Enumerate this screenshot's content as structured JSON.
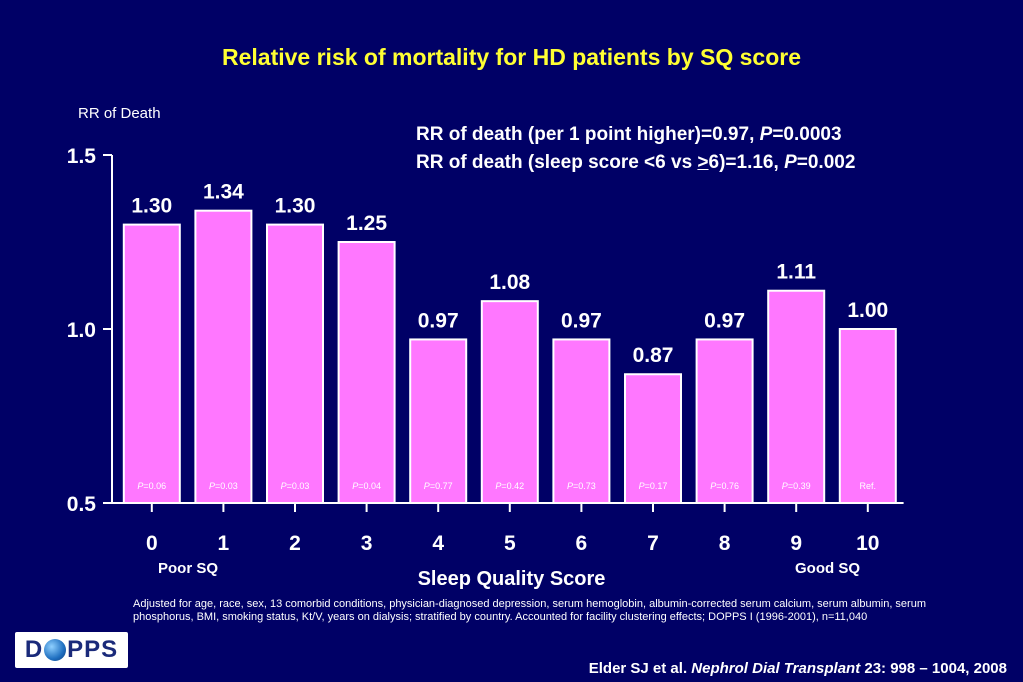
{
  "title": "Relative risk of mortality for HD patients by SQ score",
  "annotations": {
    "line1_prefix": "RR of death (per 1 point higher)=0.97, ",
    "line1_p": "P",
    "line1_suffix": "=0.0003",
    "line2_prefix": "RR of death (sleep score <6 vs ",
    "line2_ge": ">",
    "line2_mid": "6)=1.16, ",
    "line2_p": "P",
    "line2_suffix": "=0.002"
  },
  "end_labels": {
    "left": "Poor SQ",
    "right": "Good SQ"
  },
  "footnote": "Adjusted for age, race, sex, 13 comorbid conditions, physician-diagnosed depression, serum hemoglobin, albumin-corrected serum calcium, serum albumin, serum phosphorus, BMI, smoking status, Kt/V, years on dialysis; stratified by country. Accounted for facility clustering effects; DOPPS I (1996-2001),   n=11,040",
  "citation": {
    "prefix": "Elder SJ et al. ",
    "journal": "Nephrol  Dial Transplant",
    "suffix": " 23: 998 – 1004, 2008"
  },
  "logo": {
    "left": "D",
    "right": "PPS"
  },
  "colors": {
    "background": "#000066",
    "bar": "#ff77ff",
    "title": "#ffff33",
    "text": "#ffffff"
  },
  "chart_data": {
    "type": "bar",
    "title": "Relative risk of mortality for HD patients by SQ score",
    "xlabel": "Sleep Quality Score",
    "ylabel": "RR of Death",
    "ylim": [
      0.5,
      1.5
    ],
    "yticks": [
      "0.5",
      "1.0",
      "1.5"
    ],
    "ytick_values": [
      0.5,
      1.0,
      1.5
    ],
    "categories": [
      "0",
      "1",
      "2",
      "3",
      "4",
      "5",
      "6",
      "7",
      "8",
      "9",
      "10"
    ],
    "values": [
      1.3,
      1.34,
      1.3,
      1.25,
      0.97,
      1.08,
      0.97,
      0.87,
      0.97,
      1.11,
      1.0
    ],
    "value_labels": [
      "1.30",
      "1.34",
      "1.30",
      "1.25",
      "0.97",
      "1.08",
      "0.97",
      "0.87",
      "0.97",
      "1.11",
      "1.00"
    ],
    "p_values": [
      "P=0.06",
      "P=0.03",
      "P=0.03",
      "P=0.04",
      "P=0.77",
      "P=0.42",
      "P=0.73",
      "P=0.17",
      "P=0.76",
      "P=0.39",
      "Ref."
    ],
    "grid": false
  }
}
